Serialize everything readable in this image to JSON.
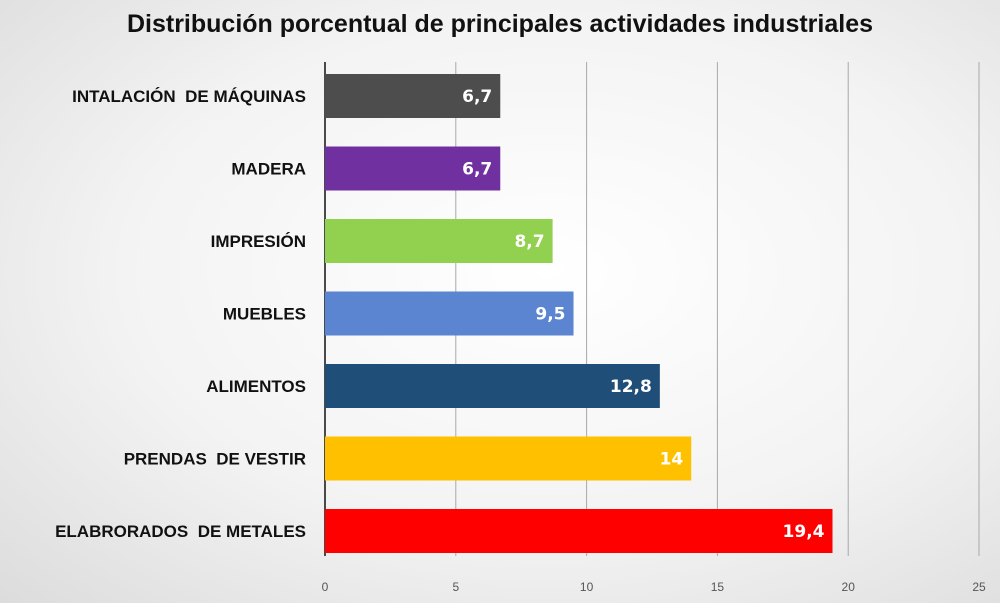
{
  "chart_data": {
    "type": "bar",
    "orientation": "horizontal",
    "title": "Distribución porcentual de principales actividades industriales",
    "categories": [
      "INTALACIÓN  DE MÁQUINAS",
      "MADERA",
      "IMPRESIÓN",
      "MUEBLES",
      "ALIMENTOS",
      "PRENDAS  DE VESTIR",
      "ELABRORADOS  DE METALES"
    ],
    "values": [
      6.7,
      6.7,
      8.7,
      9.5,
      12.8,
      14,
      19.4
    ],
    "value_labels": [
      "6,7",
      "6,7",
      "8,7",
      "9,5",
      "12,8",
      "14",
      "19,4"
    ],
    "colors": [
      "#4d4d4d",
      "#7030a0",
      "#92d050",
      "#5b84d1",
      "#1f4e79",
      "#ffc000",
      "#ff0000"
    ],
    "xlim": [
      0,
      25
    ],
    "xticks": [
      0,
      5,
      10,
      15,
      20,
      25
    ],
    "xtick_labels": [
      "0",
      "5",
      "10",
      "15",
      "20",
      "25"
    ],
    "grid": true,
    "legend": "none"
  }
}
